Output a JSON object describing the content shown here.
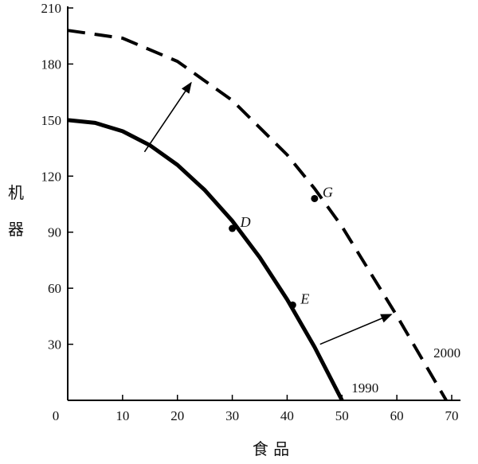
{
  "chart_data": {
    "type": "line",
    "title": "",
    "xlabel": "食 品",
    "ylabel": "机器",
    "ylabel_chars": [
      "机",
      "器"
    ],
    "xlim": [
      0,
      70
    ],
    "ylim": [
      0,
      210
    ],
    "x_ticks": [
      "10",
      "20",
      "30",
      "40",
      "50",
      "60",
      "70"
    ],
    "y_ticks": [
      "30",
      "60",
      "90",
      "120",
      "150",
      "180",
      "210"
    ],
    "origin_label": "0",
    "grid": false,
    "series": [
      {
        "name": "1990",
        "style": "solid",
        "x": [
          0,
          5,
          10,
          15,
          20,
          25,
          30,
          35,
          40,
          45,
          50
        ],
        "y": [
          150,
          148.5,
          144,
          136.5,
          126,
          112.5,
          96,
          76.5,
          54,
          28.5,
          0
        ]
      },
      {
        "name": "2000",
        "style": "dashed",
        "x": [
          0,
          10,
          20,
          30,
          40,
          45,
          50,
          60,
          69
        ],
        "y": [
          198,
          193.8,
          181.4,
          160.5,
          131.4,
          113.3,
          93,
          45.3,
          0
        ]
      }
    ],
    "points": [
      {
        "label": "D",
        "x": 30,
        "y": 92
      },
      {
        "label": "E",
        "x": 41,
        "y": 51
      },
      {
        "label": "G",
        "x": 45,
        "y": 108
      }
    ],
    "arrows": [
      {
        "from": [
          14,
          133
        ],
        "to": [
          22.5,
          170
        ]
      },
      {
        "from": [
          46,
          30
        ],
        "to": [
          59,
          46
        ]
      }
    ],
    "colors": {
      "curve": "#000000",
      "axis": "#000000"
    }
  }
}
